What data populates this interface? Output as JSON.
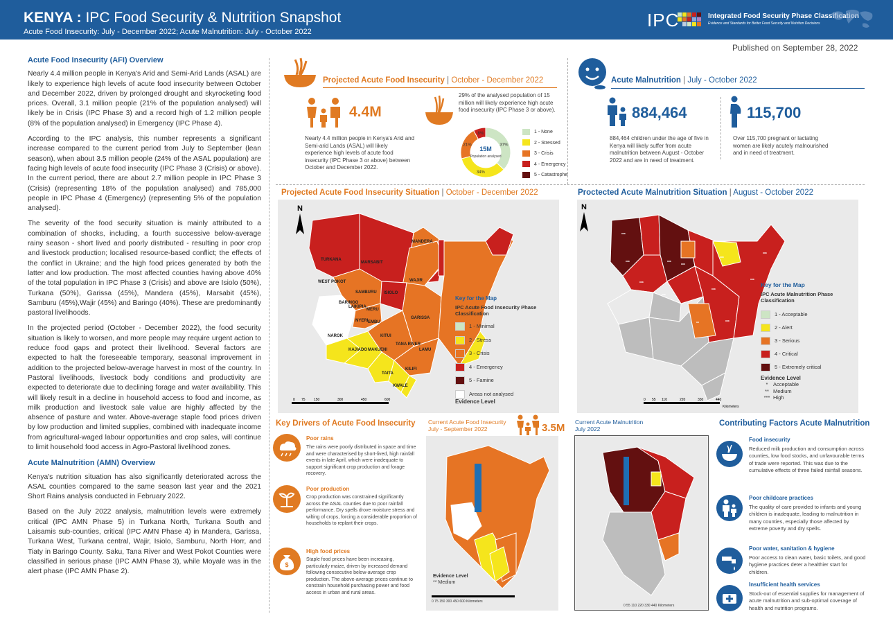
{
  "header": {
    "title_bold": "KENYA :",
    "title_rest": " IPC Food Security & Nutrition Snapshot",
    "subtitle": "Acute Food Insecurity: July - December 2022; Acute Malnutrition: July  -  October 2022",
    "logo_text": "IPC",
    "org_name": "Integrated Food Security Phase Classification",
    "org_tagline": "Evidence and Standards for Better Food Security and Nutrition Decisions"
  },
  "published": "Published on September 28, 2022",
  "left": {
    "afi_heading": "Acute Food Insecurity (AFI) Overview",
    "afi_p1": "Nearly 4.4 million people in Kenya's Arid and Semi-Arid Lands (ASAL) are likely to experience high levels of acute food insecurity between October and December 2022, driven by prolonged drought and skyrocketing food prices.  Overall, 3.1 million people (21% of the population analysed) will likely be in Crisis (IPC Phase 3) and a record high of 1.2 million people (8% of the population analysed) in Emergency (IPC Phase 4).",
    "afi_p2": "According to the IPC analysis,  this number represents a significant increase compared to the current period from July to September (lean season), when about 3.5 million people (24% of the ASAL population) are facing high levels of acute food insecurity (IPC Phase 3 (Crisis) or above). In the current period, there are about 2.7 million people in IPC Phase 3 (Crisis) (representing 18% of the population analysed) and 785,000 people in IPC Phase 4 (Emergency) (representing 5% of the population analysed).",
    "afi_p3": "The severity of the food security situation is mainly attributed to a combination of shocks, including, a fourth successive below-average rainy season - short lived and poorly distributed - resulting in poor crop and livestock production; localised resource-based conflict; the effects of the conflict in Ukraine; and the high food prices generated by both the latter and low production. The most affected counties having above 40% of the total population in IPC Phase 3 (Crisis) and above are Isiolo (50%), Turkana (50%), Garissa (45%), Mandera (45%), Marsabit (45%), Samburu (45%),Wajir (45%) and Baringo (40%). These are predominantly pastoral livelihoods.",
    "afi_p4": "In the projected period (October - December 2022), the food security situation is likely to worsen, and more people may require urgent action to reduce food gaps and protect their livelihood. Several factors are expected to halt the foreseeable temporary, seasonal improvement in addition to the projected below-average harvest in most of the country. In Pastoral livelihoods, livestock body conditions and productivity are expected to deteriorate due to declining forage and water availability. This will likely result in a decline in household access to food and income, as milk production and livestock sale value are highly affected by the absence of pasture and water. Above-average staple food prices driven by low production and limited supplies, combined with inadequate income from agricultural-waged labour opportunities and crop sales, will continue to limit household food access in Agro-Pastoral livelihood zones.",
    "amn_heading": "Acute Malnutrition (AMN) Overview",
    "amn_p1": "Kenya's nutrition situation has also significantly deteriorated across the ASAL counties compared to the same season last year and the 2021 Short Rains analysis conducted in February 2022.",
    "amn_p2": "Based on the July 2022 analysis, malnutrition levels were extremely critical (IPC AMN Phase 5) in Turkana North, Turkana South and Laisamis sub-counties, critical (IPC AMN Phase 4) in Mandera, Garissa, Turkana West, Turkana central, Wajir, Isiolo, Samburu, North Horr, and Tiaty in Baringo County. Saku, Tana River and West Pokot Counties were classified in serious phase (IPC AMN Phase 3), while Moyale was in the alert phase (IPC AMN Phase 2)."
  },
  "pafi": {
    "title": "Projected Acute Food Insecurity",
    "sep": " | ",
    "period": "October - December 2022",
    "number": "4.4M",
    "desc": "Nearly 4.4 million people in Kenya's Arid and Semi-arid Lands (ASAL) will likely experience high levels of acute food insecurity (IPC Phase 3 or above) between October and December 2022.",
    "donut_desc": "29% of the analysed population of 15 million will likely experience high acute food insecurity (IPC Phase 3 or above).",
    "donut_center": "15M",
    "donut_center_sub": "Population analysed",
    "slices": [
      {
        "label": "1 - None",
        "pct": 37,
        "text": "37%",
        "color": "#cde5c4"
      },
      {
        "label": "2 - Stressed",
        "pct": 34,
        "text": "34%",
        "color": "#f5e51c"
      },
      {
        "label": "3 - Crisis",
        "pct": 21,
        "text": "21%",
        "color": "#e67424"
      },
      {
        "label": "4 - Emergency",
        "pct": 8,
        "text": "8%",
        "color": "#c8201e"
      },
      {
        "label": "5 - Catastrophe",
        "pct": 0,
        "text": "",
        "color": "#631010"
      }
    ]
  },
  "amn": {
    "title": "Acute Malnutrition",
    "sep": " | ",
    "period": "July - October 2022",
    "children_num": "884,464",
    "children_desc": "884,464 children under the age of five in Kenya will likely suffer from acute malnutrition between August - October 2022 and are in need of treatment.",
    "women_num": "115,700",
    "women_desc": "Over 115,700 pregnant or lactating women are likely acutely malnourished and in need of treatment."
  },
  "map_afi": {
    "title": "Projected Acute Food Insecurity Situation",
    "sep": " | ",
    "period": "October - December 2022",
    "key_title": "Key for the Map",
    "key_sub": "IPC Acute Food Insecurity Phase Classification",
    "legend": [
      {
        "label": "1 - Minimal",
        "color": "#cde5c4"
      },
      {
        "label": "2 - Stress",
        "color": "#f5e51c"
      },
      {
        "label": "3 - Crisis",
        "color": "#e67424"
      },
      {
        "label": "4 - Emergency",
        "color": "#c8201e"
      },
      {
        "label": "5 - Famine",
        "color": "#631010"
      },
      {
        "label": "Areas not analysed",
        "color": "#ffffff"
      }
    ],
    "evidence": "Evidence Level",
    "north": "N",
    "scale": [
      "0",
      "75",
      "150",
      "300",
      "450",
      "600"
    ],
    "counties": [
      "MANDERA",
      "TURKANA",
      "MARSABIT",
      "WAJIR",
      "WEST POKOT",
      "SAMBURU",
      "ISIOLO",
      "BARINGO",
      "LAIKIPIA",
      "MERU",
      "GARISSA",
      "NYERI",
      "EMBU",
      "NAROK",
      "KITUI",
      "TANA RIVER",
      "KAJIADO",
      "MAKUENI",
      "LAMU",
      "KILIFI",
      "TAITA",
      "KWALE"
    ]
  },
  "map_amn": {
    "title": "Proctected Acute Malnutrition Situation",
    "sep": " | ",
    "period": "August - October 2022",
    "key_title": "Key for the Map",
    "key_sub": "IPC Acute Malnutrition Phase Classification",
    "legend": [
      {
        "label": "1 - Acceptable",
        "color": "#cde5c4"
      },
      {
        "label": "2 - Alert",
        "color": "#f5e51c"
      },
      {
        "label": "3 - Serious",
        "color": "#e67424"
      },
      {
        "label": "4 - Critical",
        "color": "#c8201e"
      },
      {
        "label": "5 - Extremely critical",
        "color": "#631010"
      }
    ],
    "evidence": "Evidence Level",
    "evidence_levels": [
      {
        "stars": "*",
        "label": "Acceptable"
      },
      {
        "stars": "**",
        "label": "Medium"
      },
      {
        "stars": "***",
        "label": "High"
      }
    ],
    "north": "N",
    "scale": [
      "0",
      "55",
      "110",
      "220",
      "330",
      "440"
    ],
    "scale_unit": "Kilometers"
  },
  "drivers": {
    "title": "Key Drivers of Acute Food Insecurity",
    "items": [
      {
        "heading": "Poor rains",
        "text": "The rains were poorly distributed in space and time and were characterised by short-lived, high rainfall events in late April, which were inadequate to support significant crop production and forage recovery."
      },
      {
        "heading": "Poor production",
        "text": "Crop production was constrained significantly across the ASAL counties due to poor rainfall performance. Dry spells drove moisture stress and wilting of crops, forcing a considerable proportion of households to replant their crops."
      },
      {
        "heading": "High food prices",
        "text": "Staple food prices have been increasing, particularly maize, driven by increased demand following consecutive below-average crop production. The above-average prices continue to constrain household purchasing power and food access in urban and rural areas."
      }
    ]
  },
  "current_afi": {
    "title": "Current Acute Food Insecurity",
    "period": "July - September 2022",
    "number": "3.5M",
    "evidence": "Evidence Level",
    "evidence_item": "**  Medium",
    "scale": [
      "0",
      "75",
      "150",
      "300",
      "450",
      "600"
    ],
    "scale_unit": "Kilometers"
  },
  "current_amn": {
    "title": "Current Acute Malnutrition",
    "period": "July 2022",
    "scale": [
      "0",
      "55",
      "110",
      "220",
      "330",
      "440"
    ],
    "scale_unit": "Kilometers"
  },
  "factors": {
    "title": "Contributing Factors Acute Malnutrition",
    "items": [
      {
        "heading": "Food insecurity",
        "text": "Reduced milk production and consumption across counties, low food stocks, and unfavourable terms of trade were reported. This was due to the cumulative effects of three failed rainfall seasons."
      },
      {
        "heading": "Poor childcare practices",
        "text": "The quality of care provided to infants and young children is inadequate, leading to malnutrition in many counties, especially those affected by extreme poverty and dry spells."
      },
      {
        "heading": "Poor water, sanitation & hygiene",
        "text": "Poor access to clean water, basic toilets, and good hygiene practices deter a healthier start for children."
      },
      {
        "heading": "Insufficient health services",
        "text": "Stock-out of essential supplies for management of acute malnutrition and sub-optimal coverage of health and nutrition programs."
      }
    ]
  }
}
